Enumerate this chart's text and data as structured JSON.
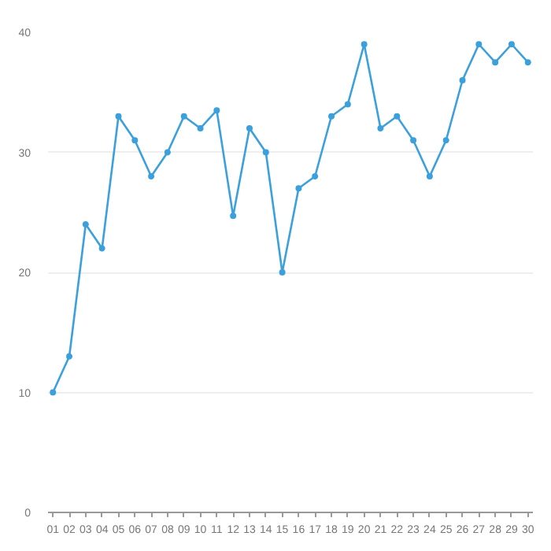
{
  "chart_data": {
    "type": "line",
    "categories": [
      "01",
      "02",
      "03",
      "04",
      "05",
      "06",
      "07",
      "08",
      "09",
      "10",
      "11",
      "12",
      "13",
      "14",
      "15",
      "16",
      "17",
      "18",
      "19",
      "20",
      "21",
      "22",
      "23",
      "24",
      "25",
      "26",
      "27",
      "28",
      "29",
      "30"
    ],
    "series": [
      {
        "color": "#3ba0dc",
        "values": [
          10,
          13,
          24,
          22,
          33,
          31,
          28,
          30,
          33,
          32,
          33.5,
          24.7,
          32,
          30,
          20,
          27,
          28,
          33,
          34,
          39,
          32,
          33,
          31,
          28,
          31,
          36,
          39,
          37.5,
          39,
          37.5
        ]
      }
    ],
    "ylim": [
      0,
      40
    ],
    "yticks": [
      0,
      10,
      20,
      30,
      40
    ],
    "grid": "y",
    "marker": "circle",
    "line_style": "solid"
  }
}
